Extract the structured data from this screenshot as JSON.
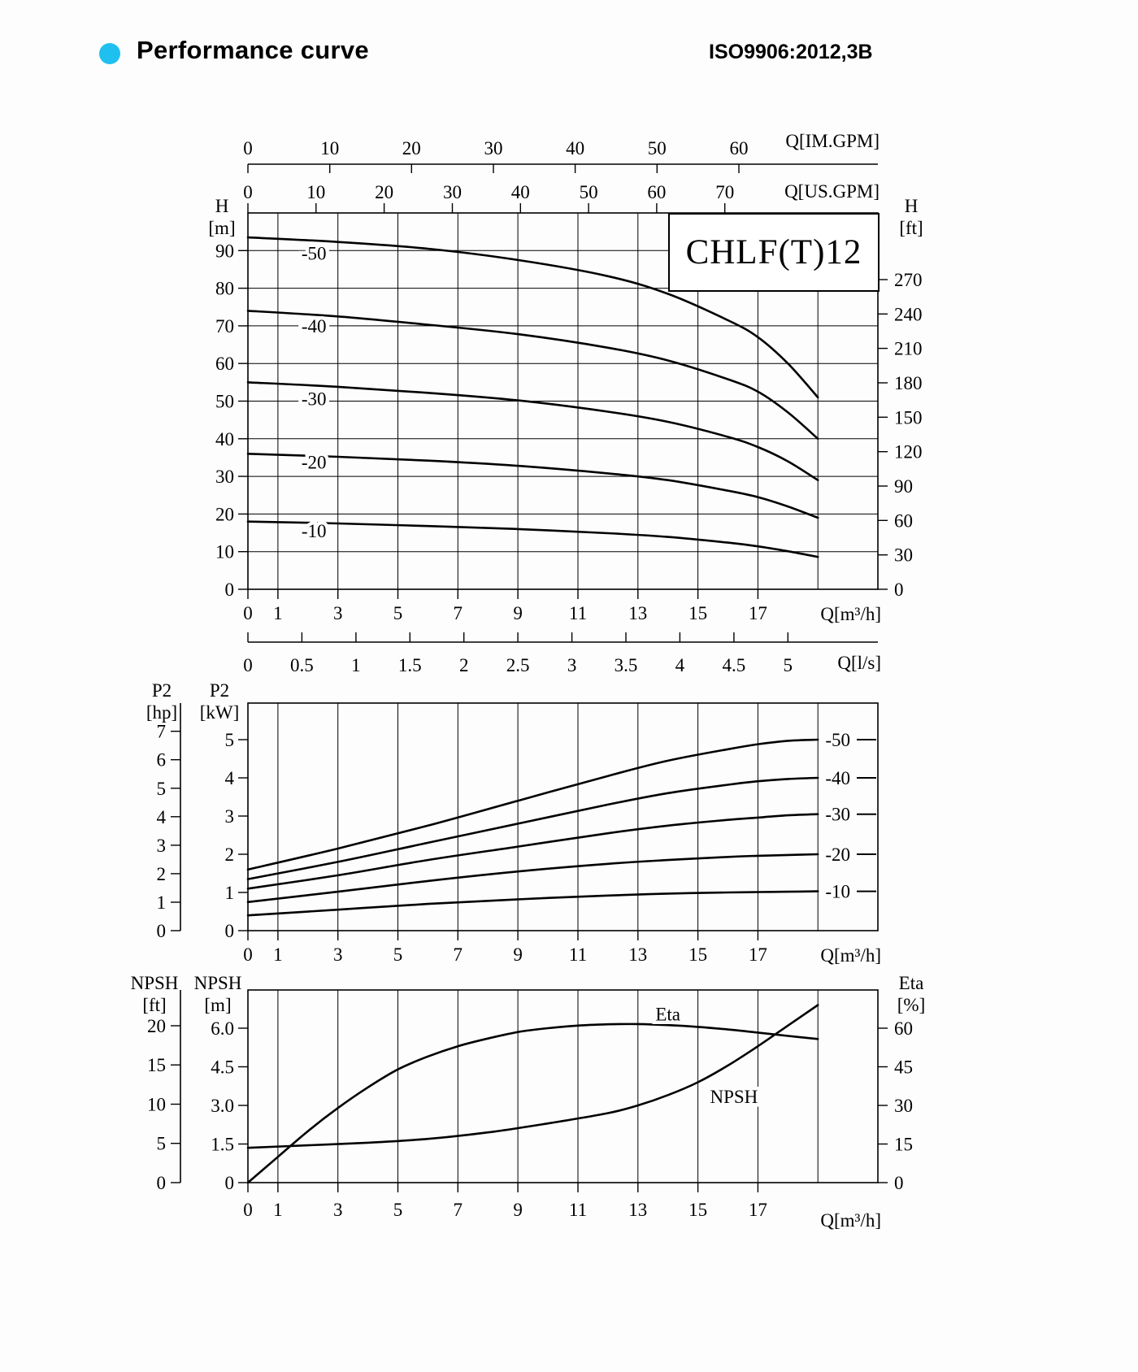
{
  "header": {
    "title": "Performance curve",
    "standard": "ISO9906:2012,3B",
    "bullet_color": "#1fc0f0"
  },
  "model": "CHLF(T)12",
  "chart_data": [
    {
      "id": "head-flow",
      "type": "line",
      "title": "CHLF(T)12",
      "x": {
        "label": "Q[m³/h]",
        "ticks": [
          0,
          1,
          3,
          5,
          7,
          9,
          11,
          13,
          15,
          17
        ],
        "max": 21
      },
      "x_secondary": [
        {
          "id": "im-gpm",
          "label": "Q[IM.GPM]",
          "ticks": [
            0,
            10,
            20,
            30,
            40,
            50,
            60
          ]
        },
        {
          "id": "us-gpm",
          "label": "Q[US.GPM]",
          "ticks": [
            0,
            10,
            20,
            30,
            40,
            50,
            60,
            70
          ]
        },
        {
          "id": "l-s",
          "label": "Q[l/s]",
          "ticks": [
            "0",
            "0.5",
            "1",
            "1.5",
            "2",
            "2.5",
            "3",
            "3.5",
            "4",
            "4.5",
            "5"
          ]
        }
      ],
      "y": {
        "label": [
          "H",
          "[m]"
        ],
        "ticks": [
          0,
          10,
          20,
          30,
          40,
          50,
          60,
          70,
          80,
          90
        ],
        "max": 100
      },
      "y_right": {
        "label": [
          "H",
          "[ft]"
        ],
        "ticks": [
          0,
          30,
          60,
          90,
          120,
          150,
          180,
          210,
          240,
          270
        ]
      },
      "grid": "both",
      "series": [
        {
          "name": "-50",
          "label_at": [
            2.2,
            89.3
          ],
          "points": [
            [
              0,
              93.5
            ],
            [
              3,
              92.3
            ],
            [
              6,
              90.5
            ],
            [
              9,
              87.5
            ],
            [
              12,
              83.2
            ],
            [
              14,
              78.5
            ],
            [
              16,
              71.5
            ],
            [
              17,
              67
            ],
            [
              18,
              60
            ],
            [
              19,
              51
            ]
          ]
        },
        {
          "name": "-40",
          "label_at": [
            2.2,
            70
          ],
          "points": [
            [
              0,
              74
            ],
            [
              3,
              72.5
            ],
            [
              6,
              70.3
            ],
            [
              9,
              67.8
            ],
            [
              12,
              64.2
            ],
            [
              14,
              60.8
            ],
            [
              16,
              55.8
            ],
            [
              17,
              52.5
            ],
            [
              18,
              47
            ],
            [
              19,
              40
            ]
          ]
        },
        {
          "name": "-30",
          "label_at": [
            2.2,
            50.6
          ],
          "points": [
            [
              0,
              55
            ],
            [
              3,
              53.8
            ],
            [
              6,
              52.2
            ],
            [
              9,
              50.2
            ],
            [
              12,
              47.2
            ],
            [
              14,
              44.5
            ],
            [
              16,
              40.5
            ],
            [
              17,
              37.8
            ],
            [
              18,
              34
            ],
            [
              19,
              29
            ]
          ]
        },
        {
          "name": "-20",
          "label_at": [
            2.2,
            33.8
          ],
          "points": [
            [
              0,
              36
            ],
            [
              3,
              35.2
            ],
            [
              6,
              34.2
            ],
            [
              9,
              32.8
            ],
            [
              12,
              30.8
            ],
            [
              14,
              29
            ],
            [
              16,
              26.2
            ],
            [
              17,
              24.5
            ],
            [
              18,
              22
            ],
            [
              19,
              19
            ]
          ]
        },
        {
          "name": "-10",
          "label_at": [
            2.2,
            15.6
          ],
          "points": [
            [
              0,
              18
            ],
            [
              3,
              17.5
            ],
            [
              6,
              16.8
            ],
            [
              9,
              16
            ],
            [
              12,
              14.9
            ],
            [
              14,
              13.9
            ],
            [
              16,
              12.4
            ],
            [
              17,
              11.4
            ],
            [
              18,
              10.1
            ],
            [
              19,
              8.6
            ]
          ]
        }
      ]
    },
    {
      "id": "power",
      "type": "line",
      "x": {
        "label": "Q[m³/h]",
        "ticks": [
          0,
          1,
          3,
          5,
          7,
          9,
          11,
          13,
          15,
          17
        ],
        "max": 21
      },
      "y": {
        "label": [
          "P2",
          "[kW]"
        ],
        "ticks": [
          0,
          1,
          2,
          3,
          4,
          5
        ]
      },
      "y_left_outer": {
        "label": [
          "P2",
          "[hp]"
        ],
        "ticks": [
          0,
          1,
          2,
          3,
          4,
          5,
          6,
          7
        ]
      },
      "grid": "vertical",
      "series": [
        {
          "name": "-50",
          "label_side": "right",
          "points": [
            [
              0,
              1.6
            ],
            [
              3,
              2.15
            ],
            [
              6,
              2.75
            ],
            [
              9,
              3.4
            ],
            [
              12,
              4.05
            ],
            [
              14,
              4.45
            ],
            [
              16,
              4.75
            ],
            [
              17,
              4.88
            ],
            [
              18,
              4.97
            ],
            [
              19,
              5.0
            ]
          ]
        },
        {
          "name": "-40",
          "label_side": "right",
          "points": [
            [
              0,
              1.35
            ],
            [
              3,
              1.8
            ],
            [
              6,
              2.3
            ],
            [
              9,
              2.8
            ],
            [
              12,
              3.3
            ],
            [
              14,
              3.6
            ],
            [
              16,
              3.82
            ],
            [
              17,
              3.91
            ],
            [
              18,
              3.97
            ],
            [
              19,
              4.0
            ]
          ]
        },
        {
          "name": "-30",
          "label_side": "right",
          "points": [
            [
              0,
              1.1
            ],
            [
              3,
              1.45
            ],
            [
              6,
              1.85
            ],
            [
              9,
              2.2
            ],
            [
              12,
              2.55
            ],
            [
              14,
              2.75
            ],
            [
              16,
              2.9
            ],
            [
              17,
              2.96
            ],
            [
              18,
              3.02
            ],
            [
              19,
              3.05
            ]
          ]
        },
        {
          "name": "-20",
          "label_side": "right",
          "points": [
            [
              0,
              0.75
            ],
            [
              3,
              1.02
            ],
            [
              6,
              1.3
            ],
            [
              9,
              1.55
            ],
            [
              12,
              1.75
            ],
            [
              14,
              1.85
            ],
            [
              16,
              1.93
            ],
            [
              17,
              1.96
            ],
            [
              18,
              1.98
            ],
            [
              19,
              2.0
            ]
          ]
        },
        {
          "name": "-10",
          "label_side": "right",
          "points": [
            [
              0,
              0.4
            ],
            [
              3,
              0.55
            ],
            [
              6,
              0.7
            ],
            [
              9,
              0.82
            ],
            [
              12,
              0.92
            ],
            [
              14,
              0.97
            ],
            [
              16,
              1.0
            ],
            [
              17,
              1.01
            ],
            [
              18,
              1.02
            ],
            [
              19,
              1.03
            ]
          ]
        }
      ]
    },
    {
      "id": "npsh-eta",
      "type": "line",
      "x": {
        "label": "Q[m³/h]",
        "ticks": [
          0,
          1,
          3,
          5,
          7,
          9,
          11,
          13,
          15,
          17
        ],
        "max": 21
      },
      "y": {
        "label": [
          "NPSH",
          "[m]"
        ],
        "ticks": [
          "0",
          "1.5",
          "3.0",
          "4.5",
          "6.0"
        ]
      },
      "y_left_outer": {
        "label": [
          "NPSH",
          "[ft]"
        ],
        "ticks": [
          0,
          5,
          10,
          15,
          20
        ]
      },
      "y_right": {
        "label": [
          "Eta",
          "[%]"
        ],
        "ticks": [
          0,
          15,
          30,
          45,
          60
        ]
      },
      "grid": "vertical",
      "series": [
        {
          "name": "Eta",
          "unit": "pct",
          "label_at": [
            14,
            65.5
          ],
          "points": [
            [
              0,
              0
            ],
            [
              1,
              10
            ],
            [
              2,
              20
            ],
            [
              3,
              29
            ],
            [
              4,
              37
            ],
            [
              5,
              44
            ],
            [
              6,
              49
            ],
            [
              7,
              53
            ],
            [
              8,
              56
            ],
            [
              9,
              58.5
            ],
            [
              10,
              60
            ],
            [
              11,
              61
            ],
            [
              12,
              61.5
            ],
            [
              13,
              61.6
            ],
            [
              14,
              61.2
            ],
            [
              15,
              60.5
            ],
            [
              16,
              59.5
            ],
            [
              17,
              58.3
            ],
            [
              18,
              57
            ],
            [
              19,
              55.8
            ]
          ]
        },
        {
          "name": "NPSH",
          "unit": "m",
          "label_at": [
            16.2,
            3.35
          ],
          "points": [
            [
              0,
              1.35
            ],
            [
              2,
              1.45
            ],
            [
              4,
              1.55
            ],
            [
              6,
              1.7
            ],
            [
              8,
              1.95
            ],
            [
              10,
              2.3
            ],
            [
              12,
              2.7
            ],
            [
              13,
              3.0
            ],
            [
              14,
              3.4
            ],
            [
              15,
              3.9
            ],
            [
              16,
              4.55
            ],
            [
              17,
              5.3
            ],
            [
              18,
              6.1
            ],
            [
              19,
              6.9
            ]
          ]
        }
      ]
    }
  ]
}
